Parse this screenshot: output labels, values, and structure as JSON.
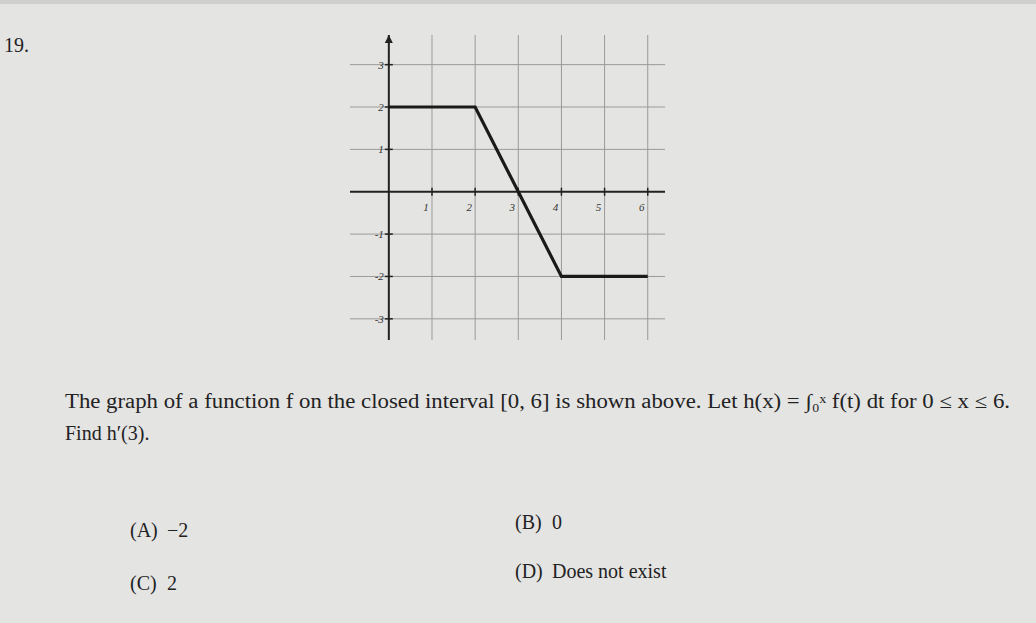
{
  "number": "19.",
  "chart_data": {
    "type": "line",
    "x": [
      0,
      2,
      4,
      6
    ],
    "series": [
      {
        "name": "f",
        "color": "#1a1a1a",
        "values": [
          2,
          2,
          -2,
          -2
        ]
      }
    ],
    "xlim": [
      -0.9,
      6.4
    ],
    "ylim": [
      -3.5,
      3.7
    ],
    "xticks": [
      1,
      2,
      3,
      4,
      5,
      6
    ],
    "yticks": [
      -3,
      -2,
      -1,
      1,
      2,
      3
    ],
    "grid": true
  },
  "question": [
    "The graph of a function f on the closed interval [0, 6] is shown above. Let h(x) = ∫₀ˣ f(t) dt for 0 ≤ x ≤ 6.",
    "Find h′(3)."
  ],
  "choices": [
    {
      "letter": "(A)",
      "text": "−2"
    },
    {
      "letter": "(B)",
      "text": "0"
    },
    {
      "letter": "(C)",
      "text": "2"
    },
    {
      "letter": "(D)",
      "text": "Does not exist"
    }
  ]
}
